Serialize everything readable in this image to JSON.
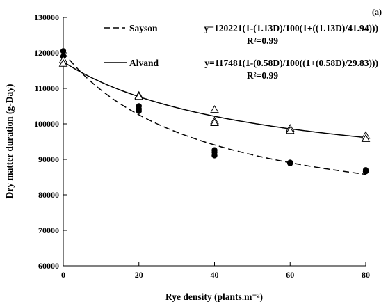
{
  "chart_data": {
    "type": "scatter",
    "panel_label": "(a)",
    "xlabel": "Rye density (plants.m⁻²)",
    "ylabel": "Dry matter duration (g-Day)",
    "xlim": [
      0,
      80
    ],
    "ylim": [
      60000,
      130000
    ],
    "x_ticks": [
      0,
      20,
      40,
      60,
      80
    ],
    "y_ticks": [
      60000,
      70000,
      80000,
      90000,
      100000,
      110000,
      120000,
      130000
    ],
    "grid": false,
    "legend_position": "top-right",
    "series": [
      {
        "name": "Sayson",
        "equation": "y=120221(1-(1.13D)/100(1+((1.13D)/41.94)))",
        "r2": "R²=0.99",
        "marker": "filled-circle",
        "line_style": "dashed",
        "fit": {
          "y0": 120221,
          "i": 1.13,
          "a": 41.94
        },
        "points": [
          {
            "x": 0,
            "y": 120500
          },
          {
            "x": 0,
            "y": 119000
          },
          {
            "x": 20,
            "y": 105000
          },
          {
            "x": 20,
            "y": 104200
          },
          {
            "x": 20,
            "y": 103600
          },
          {
            "x": 40,
            "y": 92600
          },
          {
            "x": 40,
            "y": 92000
          },
          {
            "x": 40,
            "y": 91100
          },
          {
            "x": 60,
            "y": 89100
          },
          {
            "x": 60,
            "y": 88900
          },
          {
            "x": 80,
            "y": 87000
          },
          {
            "x": 80,
            "y": 86600
          }
        ]
      },
      {
        "name": "Alvand",
        "equation": "y=117481(1-(0.58D)/100((1+(0.58D)/29.83)))",
        "r2": "R²=0.99",
        "marker": "open-triangle",
        "line_style": "solid",
        "fit": {
          "y0": 117481,
          "i": 0.58,
          "a": 29.83
        },
        "points": [
          {
            "x": 0,
            "y": 118000
          },
          {
            "x": 0,
            "y": 117000
          },
          {
            "x": 20,
            "y": 108000
          },
          {
            "x": 20,
            "y": 107700
          },
          {
            "x": 40,
            "y": 104000
          },
          {
            "x": 40,
            "y": 100800
          },
          {
            "x": 40,
            "y": 100300
          },
          {
            "x": 60,
            "y": 98700
          },
          {
            "x": 60,
            "y": 98100
          },
          {
            "x": 80,
            "y": 96700
          },
          {
            "x": 80,
            "y": 95800
          }
        ]
      }
    ]
  }
}
